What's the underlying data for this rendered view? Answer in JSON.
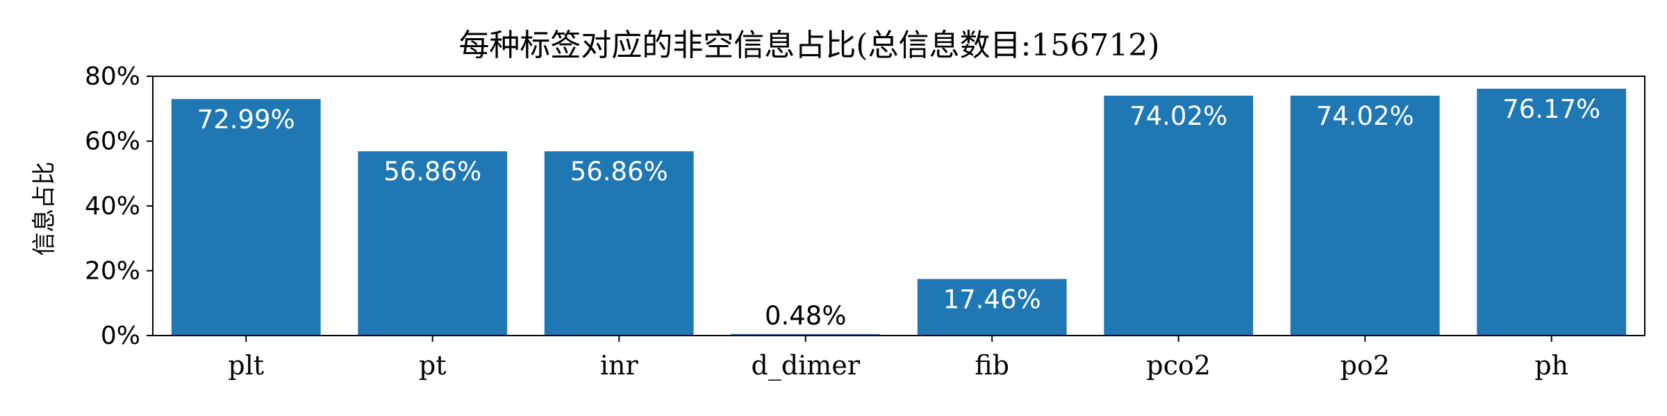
{
  "chart_data": {
    "type": "bar",
    "title": "每种标签对应的非空信息占比(总信息数目:156712)",
    "ylabel": "信息占比",
    "xlabel": "",
    "categories": [
      "plt",
      "pt",
      "inr",
      "d_dimer",
      "fib",
      "pco2",
      "po2",
      "ph"
    ],
    "values": [
      72.99,
      56.86,
      56.86,
      0.48,
      17.46,
      74.02,
      74.02,
      76.17
    ],
    "data_labels": [
      "72.99%",
      "56.86%",
      "56.86%",
      "0.48%",
      "17.46%",
      "74.02%",
      "74.02%",
      "76.17%"
    ],
    "yticks": [
      0,
      20,
      40,
      60,
      80
    ],
    "ytick_labels": [
      "0%",
      "20%",
      "40%",
      "60%",
      "80%"
    ],
    "ylim": [
      0,
      80
    ],
    "grid": false,
    "legend": "none",
    "colors": {
      "bar": "#1f77b4",
      "label_inside": "#ffffff",
      "label_outside": "#000000"
    }
  }
}
